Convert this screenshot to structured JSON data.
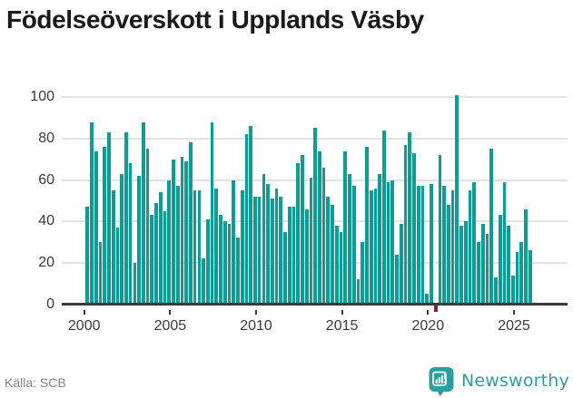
{
  "title": "Födelseöverskott i Upplands Väsby",
  "source": "Källa: SCB",
  "brand": {
    "name": "Newsworthy",
    "color": "#2f9f9d"
  },
  "chart_data": {
    "type": "bar",
    "title": "Födelseöverskott i Upplands Väsby",
    "frequency": "quarterly",
    "x_start": "2000 Q1",
    "x_end": "2025 Q4",
    "values": [
      47,
      88,
      74,
      30,
      76,
      83,
      55,
      37,
      63,
      83,
      68,
      20,
      62,
      88,
      75,
      43,
      49,
      54,
      45,
      60,
      70,
      57,
      71,
      69,
      78,
      55,
      55,
      22,
      41,
      88,
      56,
      43,
      40,
      39,
      60,
      32,
      55,
      82,
      86,
      52,
      52,
      63,
      58,
      51,
      56,
      52,
      35,
      47,
      47,
      68,
      72,
      46,
      61,
      85,
      74,
      66,
      52,
      48,
      38,
      35,
      74,
      63,
      57,
      12,
      30,
      76,
      55,
      56,
      63,
      84,
      59,
      60,
      24,
      39,
      77,
      83,
      73,
      57,
      57,
      5,
      58,
      -3,
      72,
      57,
      48,
      55,
      101,
      38,
      40,
      55,
      59,
      30,
      39,
      34,
      75,
      13,
      43,
      59,
      38,
      14,
      25,
      30,
      46,
      26
    ],
    "xlabel": "",
    "ylabel": "",
    "ylim": [
      -5,
      105
    ],
    "ytick_labels": [
      "0",
      "20",
      "40",
      "60",
      "80",
      "100"
    ],
    "yticks": [
      0,
      20,
      40,
      60,
      80,
      100
    ],
    "xtick_labels": [
      "2000",
      "2005",
      "2010",
      "2015",
      "2020",
      "2025"
    ],
    "xticks_years_after_start": [
      0,
      5,
      10,
      15,
      20,
      25
    ],
    "grid": true,
    "legend": "none",
    "bar_color": "#0a9e96",
    "negative_bar_color": "#8e1850",
    "axis_color": "#3a3a3a",
    "gridline_color": "#e3e3e3"
  }
}
